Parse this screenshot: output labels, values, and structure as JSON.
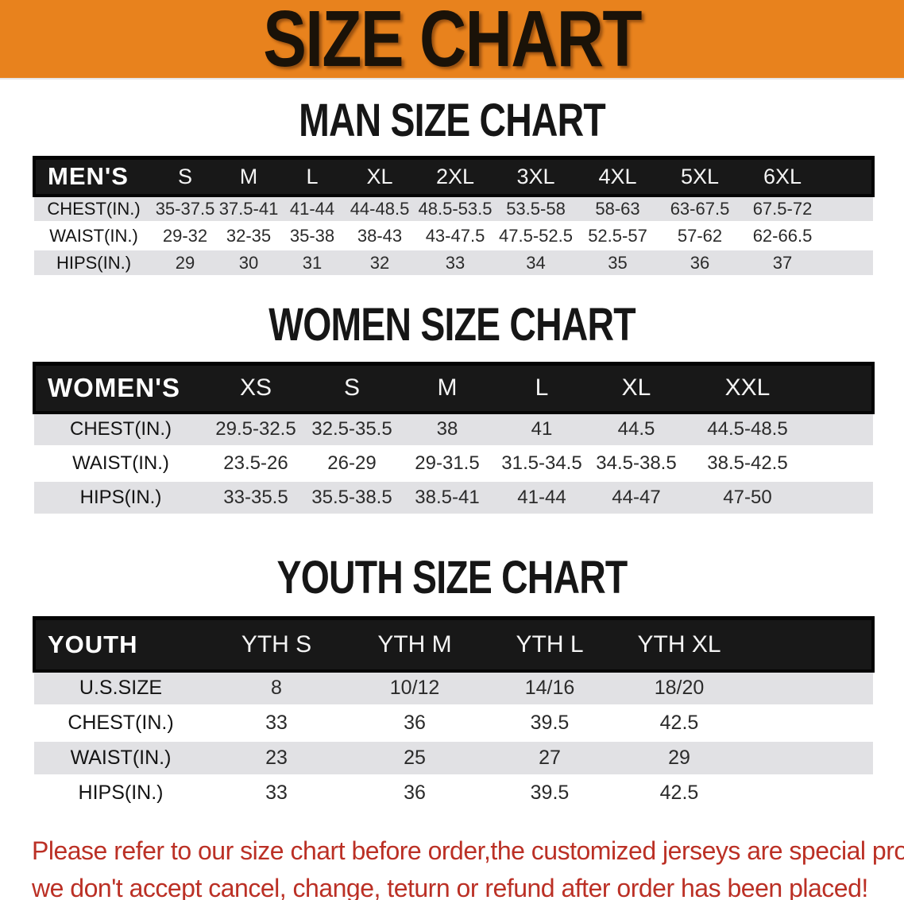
{
  "banner": {
    "title": "SIZE CHART",
    "bg_color": "#e8821d"
  },
  "sections": [
    {
      "id": "men",
      "title": "MAN SIZE CHART",
      "header_label": "MEN'S",
      "columns": [
        "S",
        "M",
        "L",
        "XL",
        "2XL",
        "3XL",
        "4XL",
        "5XL",
        "6XL"
      ],
      "rows": [
        {
          "label": "CHEST(IN.)",
          "values": [
            "35-37.5",
            "37.5-41",
            "41-44",
            "44-48.5",
            "48.5-53.5",
            "53.5-58",
            "58-63",
            "63-67.5",
            "67.5-72"
          ]
        },
        {
          "label": "WAIST(IN.)",
          "values": [
            "29-32",
            "32-35",
            "35-38",
            "38-43",
            "43-47.5",
            "47.5-52.5",
            "52.5-57",
            "57-62",
            "62-66.5"
          ]
        },
        {
          "label": "HIPS(IN.)",
          "values": [
            "29",
            "30",
            "31",
            "32",
            "33",
            "34",
            "35",
            "36",
            "37"
          ]
        }
      ]
    },
    {
      "id": "women",
      "title": "WOMEN SIZE CHART",
      "header_label": "WOMEN'S",
      "columns": [
        "XS",
        "S",
        "M",
        "L",
        "XL",
        "XXL"
      ],
      "rows": [
        {
          "label": "CHEST(IN.)",
          "values": [
            "29.5-32.5",
            "32.5-35.5",
            "38",
            "41",
            "44.5",
            "44.5-48.5"
          ]
        },
        {
          "label": "WAIST(IN.)",
          "values": [
            "23.5-26",
            "26-29",
            "29-31.5",
            "31.5-34.5",
            "34.5-38.5",
            "38.5-42.5"
          ]
        },
        {
          "label": "HIPS(IN.)",
          "values": [
            "33-35.5",
            "35.5-38.5",
            "38.5-41",
            "41-44",
            "44-47",
            "47-50"
          ]
        }
      ]
    },
    {
      "id": "youth",
      "title": "YOUTH SIZE CHART",
      "header_label": "YOUTH",
      "columns": [
        "YTH S",
        "YTH M",
        "YTH L",
        "YTH XL"
      ],
      "rows": [
        {
          "label": "U.S.SIZE",
          "values": [
            "8",
            "10/12",
            "14/16",
            "18/20"
          ]
        },
        {
          "label": "CHEST(IN.)",
          "values": [
            "33",
            "36",
            "39.5",
            "42.5"
          ]
        },
        {
          "label": "WAIST(IN.)",
          "values": [
            "23",
            "25",
            "27",
            "29"
          ]
        },
        {
          "label": "HIPS(IN.)",
          "values": [
            "33",
            "36",
            "39.5",
            "42.5"
          ]
        }
      ]
    }
  ],
  "disclaimer": {
    "lines": [
      "Please refer to our size chart before order,the customized jerseys are special products,",
      "we don't accept cancel, change, teturn or refund after order has been placed!"
    ],
    "color": "#bb3025"
  }
}
